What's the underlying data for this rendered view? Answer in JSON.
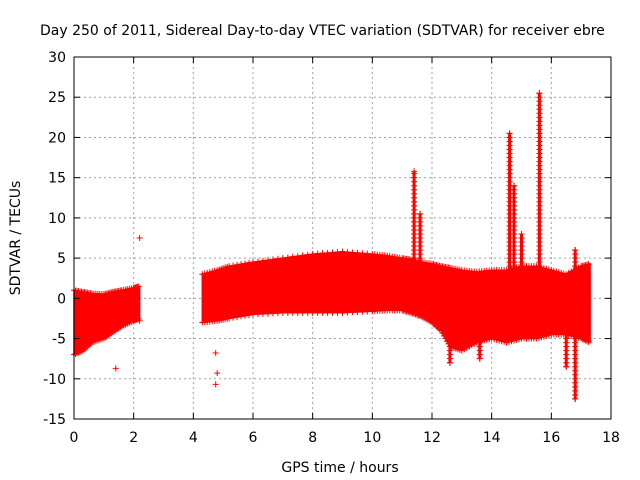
{
  "chart_data": {
    "type": "scatter",
    "title": "Day 250 of 2011, Sidereal Day-to-day VTEC variation (SDTVAR) for receiver ebre",
    "xlabel": "GPS time / hours",
    "ylabel": "SDTVAR / TECUs",
    "xlim": [
      0,
      18
    ],
    "ylim": [
      -15,
      30
    ],
    "xticks": [
      0,
      2,
      4,
      6,
      8,
      10,
      12,
      14,
      16,
      18
    ],
    "yticks": [
      -15,
      -10,
      -5,
      0,
      5,
      10,
      15,
      20,
      25,
      30
    ],
    "grid": true,
    "marker": "plus",
    "series_color": "#ff0000",
    "series": [
      {
        "name": "SDTVAR",
        "envelope_segments": [
          {
            "x": [
              0.0,
              0.3,
              0.6,
              1.0,
              1.3,
              1.6,
              2.0,
              2.2
            ],
            "upper": [
              1.0,
              0.8,
              0.6,
              0.5,
              0.8,
              1.0,
              1.3,
              1.5
            ],
            "lower": [
              -7.0,
              -6.5,
              -5.5,
              -5.0,
              -4.2,
              -3.5,
              -2.8,
              -2.5
            ]
          },
          {
            "x": [
              4.3,
              4.8,
              5.2,
              6.0,
              7.0,
              8.0,
              9.0,
              10.0,
              10.5,
              11.0,
              11.3,
              11.6,
              12.0,
              12.3,
              12.6,
              13.0,
              13.5,
              14.0,
              14.5,
              15.0,
              15.5,
              16.0,
              16.5,
              17.0,
              17.3
            ],
            "upper": [
              3.0,
              3.5,
              4.0,
              4.5,
              5.0,
              5.5,
              5.8,
              5.5,
              5.3,
              5.0,
              4.8,
              4.5,
              4.3,
              4.0,
              3.8,
              3.5,
              3.3,
              3.5,
              3.5,
              4.0,
              4.0,
              3.5,
              3.0,
              4.0,
              4.3
            ],
            "lower": [
              -3.0,
              -2.8,
              -2.5,
              -2.0,
              -1.8,
              -1.8,
              -1.8,
              -1.6,
              -1.5,
              -1.5,
              -1.8,
              -2.2,
              -3.0,
              -4.0,
              -6.0,
              -6.5,
              -5.5,
              -5.0,
              -5.5,
              -5.0,
              -5.0,
              -4.5,
              -4.5,
              -5.0,
              -5.5
            ]
          }
        ],
        "spikes": [
          {
            "x": 11.4,
            "peak": 15.8
          },
          {
            "x": 11.6,
            "peak": 10.5
          },
          {
            "x": 14.6,
            "peak": 20.5
          },
          {
            "x": 14.75,
            "peak": 14.0
          },
          {
            "x": 15.0,
            "peak": 8.0
          },
          {
            "x": 15.6,
            "peak": 25.5
          },
          {
            "x": 16.8,
            "peak": 6.0
          }
        ],
        "dips": [
          {
            "x": 12.6,
            "trough": -8.0
          },
          {
            "x": 13.6,
            "trough": -7.5
          },
          {
            "x": 16.8,
            "trough": -12.5
          },
          {
            "x": 16.5,
            "trough": -8.5
          }
        ],
        "outliers": [
          {
            "x": 2.2,
            "y": 7.5
          },
          {
            "x": 1.4,
            "y": -8.7
          },
          {
            "x": 4.75,
            "y": -6.8
          },
          {
            "x": 4.8,
            "y": -9.3
          },
          {
            "x": 4.75,
            "y": -10.7
          },
          {
            "x": 2.2,
            "y": -2.8
          },
          {
            "x": 1.35,
            "y": -3.8
          }
        ]
      }
    ]
  }
}
